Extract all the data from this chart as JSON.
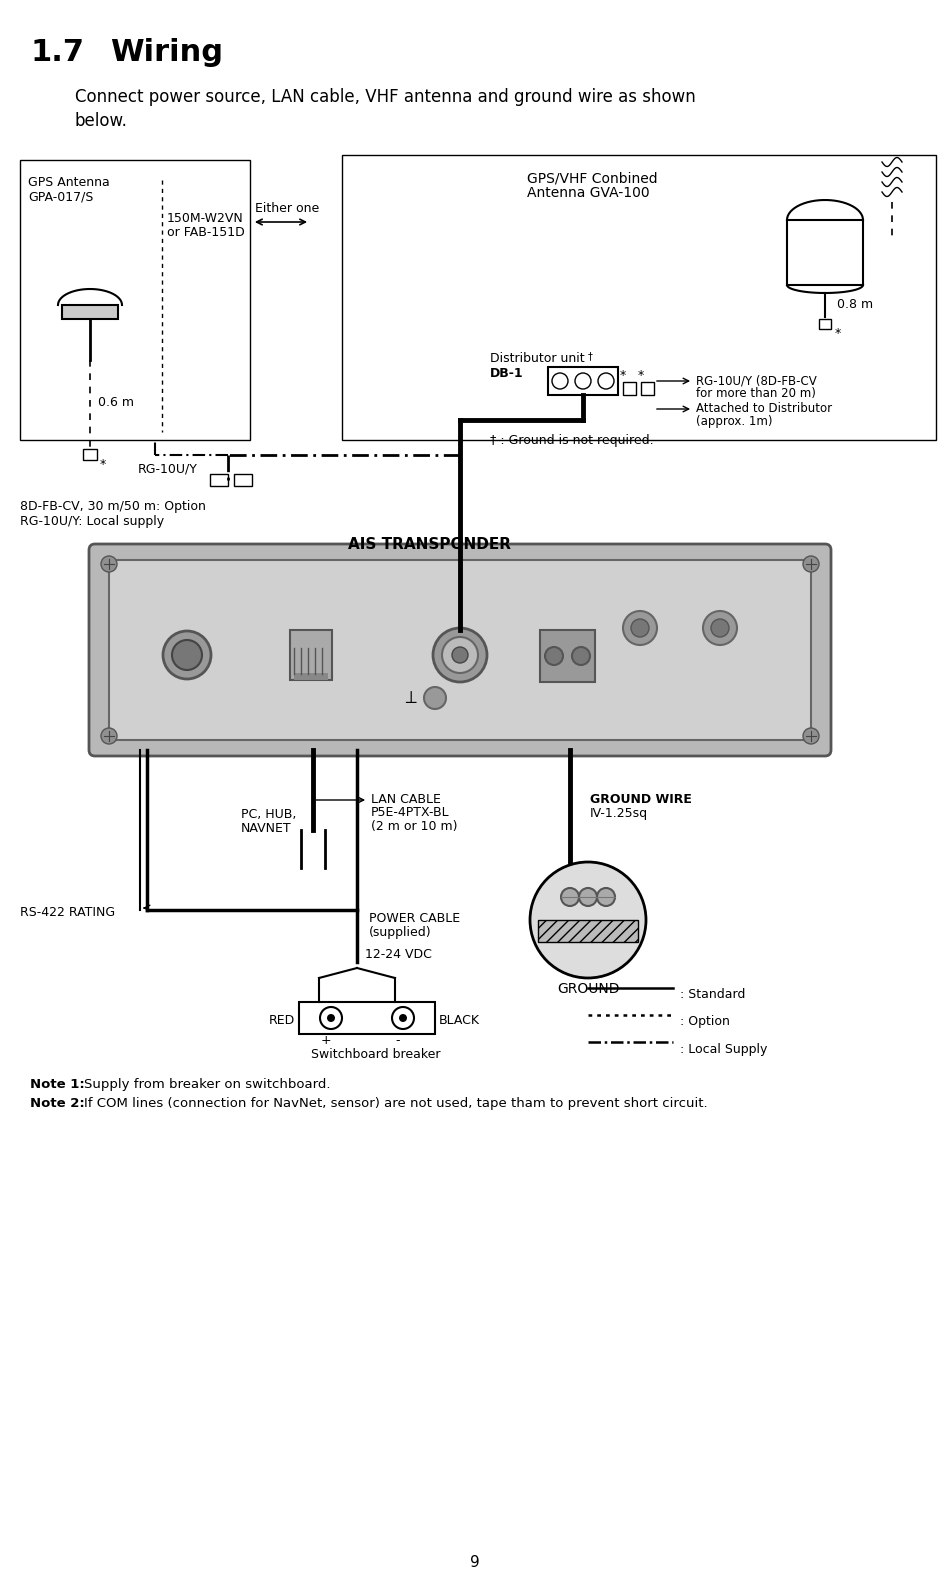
{
  "title_num": "1.7",
  "title_text": "Wiring",
  "subtitle1": "Connect power source, LAN cable, VHF antenna and ground wire as shown",
  "subtitle2": "below.",
  "note1_bold": "Note 1:",
  "note1_rest": " Supply from breaker on switchboard.",
  "note2_bold": "Note 2:",
  "note2_rest": " If COM lines (connection for NavNet, sensor) are not used, tape tham to prevent short circuit.",
  "page_number": "9",
  "bg_color": "#ffffff",
  "fig_width": 9.51,
  "fig_height": 15.81
}
